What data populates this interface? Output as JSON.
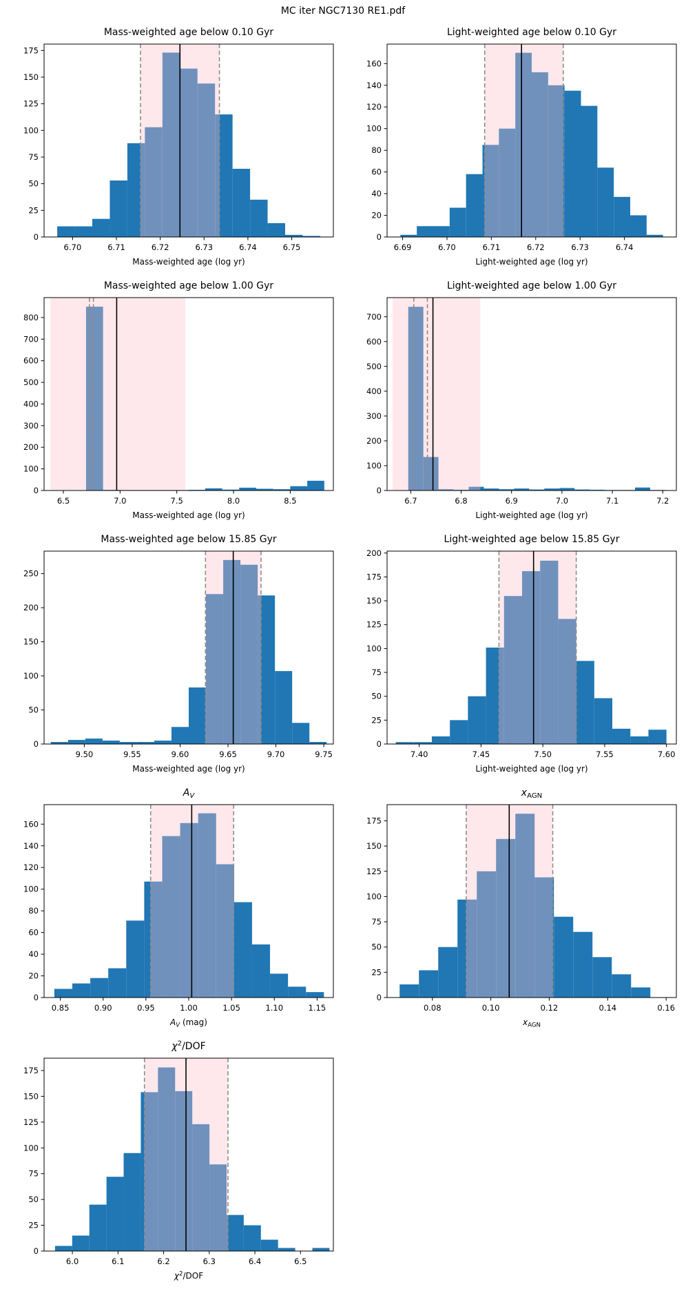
{
  "figure": {
    "title": "MC iter NGC7130 RE1.pdf"
  },
  "colors": {
    "bar": "#2077b4",
    "band": "#ffc0cb",
    "band_opacity": 0.36,
    "dashed": "#8c8c8c",
    "median": "#000000",
    "axis": "#000000"
  },
  "chart_data": [
    {
      "type": "bar",
      "subtype": "histogram",
      "title": "Mass-weighted age below 0.10 Gyr",
      "title_parts": [
        {
          "t": "Mass-weighted age below 0.10 Gyr"
        }
      ],
      "xlabel": "Mass-weighted age (log yr)",
      "xlabel_parts": [
        {
          "t": "Mass-weighted age (log yr)"
        }
      ],
      "xlim": [
        6.6935,
        6.7595
      ],
      "ylim": [
        0,
        181
      ],
      "xtick_vals": [
        6.7,
        6.71,
        6.72,
        6.73,
        6.74,
        6.75
      ],
      "xtick_labels": [
        "6.70",
        "6.71",
        "6.72",
        "6.73",
        "6.74",
        "6.75"
      ],
      "ytick_vals": [
        0,
        25,
        50,
        75,
        100,
        125,
        150,
        175
      ],
      "ytick_labels": [
        "0",
        "25",
        "50",
        "75",
        "100",
        "125",
        "150",
        "175"
      ],
      "bin_start": 6.6965,
      "bin_width": 0.004,
      "counts": [
        10,
        10,
        17,
        53,
        88,
        103,
        173,
        158,
        144,
        115,
        64,
        35,
        13,
        2,
        1
      ],
      "ci_band": [
        6.7155,
        6.7335
      ],
      "median_line": 6.7245,
      "dashed_lines": [
        6.7155,
        6.7335
      ]
    },
    {
      "type": "bar",
      "subtype": "histogram",
      "title": "Light-weighted age below 0.10 Gyr",
      "title_parts": [
        {
          "t": "Light-weighted age below 0.10 Gyr"
        }
      ],
      "xlabel": "Light-weighted age (log yr)",
      "xlabel_parts": [
        {
          "t": "Light-weighted age (log yr)"
        }
      ],
      "xlim": [
        6.6865,
        6.7517
      ],
      "ylim": [
        0,
        178
      ],
      "xtick_vals": [
        6.69,
        6.7,
        6.71,
        6.72,
        6.73,
        6.74
      ],
      "xtick_labels": [
        "6.69",
        "6.70",
        "6.71",
        "6.72",
        "6.73",
        "6.74"
      ],
      "ytick_vals": [
        0,
        20,
        40,
        60,
        80,
        100,
        120,
        140,
        160
      ],
      "ytick_labels": [
        "0",
        "20",
        "40",
        "60",
        "80",
        "100",
        "120",
        "140",
        "160"
      ],
      "bin_start": 6.6895,
      "bin_width": 0.0037,
      "counts": [
        2,
        10,
        10,
        27,
        58,
        85,
        100,
        170,
        152,
        140,
        135,
        121,
        64,
        37,
        20,
        2
      ],
      "ci_band": [
        6.7085,
        6.7262
      ],
      "median_line": 6.7168,
      "dashed_lines": [
        6.7085,
        6.7262
      ]
    },
    {
      "type": "bar",
      "subtype": "histogram",
      "title": "Mass-weighted age below 1.00 Gyr",
      "title_parts": [
        {
          "t": "Mass-weighted age below 1.00 Gyr"
        }
      ],
      "xlabel": "Mass-weighted age (log yr)",
      "xlabel_parts": [
        {
          "t": "Mass-weighted age (log yr)"
        }
      ],
      "xlim": [
        6.33,
        8.88
      ],
      "ylim": [
        0,
        892
      ],
      "xtick_vals": [
        6.5,
        7.0,
        7.5,
        8.0,
        8.5
      ],
      "xtick_labels": [
        "6.5",
        "7.0",
        "7.5",
        "8.0",
        "8.5"
      ],
      "ytick_vals": [
        0,
        100,
        200,
        300,
        400,
        500,
        600,
        700,
        800
      ],
      "ytick_labels": [
        "0",
        "100",
        "200",
        "300",
        "400",
        "500",
        "600",
        "700",
        "800"
      ],
      "bin_start": 6.4,
      "bin_width": 0.15,
      "counts": [
        0,
        0,
        850,
        3,
        2,
        2,
        2,
        2,
        3,
        10,
        4,
        13,
        8,
        6,
        20,
        45
      ],
      "ci_band": [
        6.385,
        7.575
      ],
      "median_line": 6.97,
      "dashed_lines": [
        6.73,
        6.765
      ]
    },
    {
      "type": "bar",
      "subtype": "histogram",
      "title": "Light-weighted age below 1.00 Gyr",
      "title_parts": [
        {
          "t": "Light-weighted age below 1.00 Gyr"
        }
      ],
      "xlabel": "Light-weighted age (log yr)",
      "xlabel_parts": [
        {
          "t": "Light-weighted age (log yr)"
        }
      ],
      "xlim": [
        6.653,
        7.227
      ],
      "ylim": [
        0,
        777
      ],
      "xtick_vals": [
        6.7,
        6.8,
        6.9,
        7.0,
        7.1,
        7.2
      ],
      "xtick_labels": [
        "6.7",
        "6.8",
        "6.9",
        "7.0",
        "7.1",
        "7.2"
      ],
      "ytick_vals": [
        0,
        100,
        200,
        300,
        400,
        500,
        600,
        700
      ],
      "ytick_labels": [
        "0",
        "100",
        "200",
        "300",
        "400",
        "500",
        "600",
        "700"
      ],
      "bin_start": 6.695,
      "bin_width": 0.03,
      "counts": [
        740,
        135,
        5,
        3,
        15,
        8,
        5,
        8,
        4,
        8,
        10,
        4,
        3,
        2,
        2,
        12,
        2
      ],
      "ci_band": [
        6.664,
        6.838
      ],
      "median_line": 6.744,
      "dashed_lines": [
        6.706,
        6.733
      ]
    },
    {
      "type": "bar",
      "subtype": "histogram",
      "title": "Mass-weighted age below 15.85 Gyr",
      "title_parts": [
        {
          "t": "Mass-weighted age below 15.85 Gyr"
        }
      ],
      "xlabel": "Mass-weighted age (log yr)",
      "xlabel_parts": [
        {
          "t": "Mass-weighted age (log yr)"
        }
      ],
      "xlim": [
        9.458,
        9.76
      ],
      "ylim": [
        0,
        283
      ],
      "xtick_vals": [
        9.5,
        9.55,
        9.6,
        9.65,
        9.7,
        9.75
      ],
      "xtick_labels": [
        "9.50",
        "9.55",
        "9.60",
        "9.65",
        "9.70",
        "9.75"
      ],
      "ytick_vals": [
        0,
        50,
        100,
        150,
        200,
        250
      ],
      "ytick_labels": [
        "0",
        "50",
        "100",
        "150",
        "200",
        "250"
      ],
      "bin_start": 9.465,
      "bin_width": 0.018,
      "counts": [
        3,
        6,
        8,
        5,
        3,
        3,
        5,
        25,
        83,
        220,
        270,
        263,
        218,
        107,
        31,
        3
      ],
      "ci_band": [
        9.6265,
        9.6845
      ],
      "median_line": 9.6555,
      "dashed_lines": [
        9.6265,
        9.6845
      ]
    },
    {
      "type": "bar",
      "subtype": "histogram",
      "title": "Light-weighted age below 15.85 Gyr",
      "title_parts": [
        {
          "t": "Light-weighted age below 15.85 Gyr"
        }
      ],
      "xlabel": "Light-weighted age (log yr)",
      "xlabel_parts": [
        {
          "t": "Light-weighted age (log yr)"
        }
      ],
      "xlim": [
        7.374,
        7.608
      ],
      "ylim": [
        0,
        202
      ],
      "xtick_vals": [
        7.4,
        7.45,
        7.5,
        7.55,
        7.6
      ],
      "xtick_labels": [
        "7.40",
        "7.45",
        "7.50",
        "7.55",
        "7.60"
      ],
      "ytick_vals": [
        0,
        25,
        50,
        75,
        100,
        125,
        150,
        175,
        200
      ],
      "ytick_labels": [
        "0",
        "25",
        "50",
        "75",
        "100",
        "125",
        "150",
        "175",
        "200"
      ],
      "bin_start": 7.381,
      "bin_width": 0.0146,
      "counts": [
        2,
        2,
        8,
        25,
        50,
        101,
        155,
        181,
        192,
        131,
        87,
        48,
        16,
        8,
        15
      ],
      "ci_band": [
        7.4645,
        7.527
      ],
      "median_line": 7.4925,
      "dashed_lines": [
        7.4645,
        7.527
      ]
    },
    {
      "type": "bar",
      "subtype": "histogram",
      "title": "A_V",
      "title_parts": [
        {
          "t": "A",
          "i": 1
        },
        {
          "t": "V",
          "i": 1,
          "sub": 1
        }
      ],
      "xlabel": "A_V (mag)",
      "xlabel_parts": [
        {
          "t": "A",
          "i": 1
        },
        {
          "t": "V",
          "i": 1,
          "sub": 1
        },
        {
          "t": " (mag)"
        }
      ],
      "xlim": [
        0.831,
        1.169
      ],
      "ylim": [
        0,
        178
      ],
      "xtick_vals": [
        0.85,
        0.9,
        0.95,
        1.0,
        1.05,
        1.1,
        1.15
      ],
      "xtick_labels": [
        "0.85",
        "0.90",
        "0.95",
        "1.00",
        "1.05",
        "1.10",
        "1.15"
      ],
      "ytick_vals": [
        0,
        20,
        40,
        60,
        80,
        100,
        120,
        140,
        160
      ],
      "ytick_labels": [
        "0",
        "20",
        "40",
        "60",
        "80",
        "100",
        "120",
        "140",
        "160"
      ],
      "bin_start": 0.843,
      "bin_width": 0.021,
      "counts": [
        8,
        13,
        18,
        27,
        71,
        107,
        149,
        161,
        170,
        123,
        88,
        49,
        22,
        10,
        5
      ],
      "ci_band": [
        0.9555,
        1.0525
      ],
      "median_line": 1.0035,
      "dashed_lines": [
        0.9555,
        1.0525
      ]
    },
    {
      "type": "bar",
      "subtype": "histogram",
      "title": "x_AGN",
      "title_parts": [
        {
          "t": "x",
          "i": 1
        },
        {
          "t": "AGN",
          "sub": 1
        }
      ],
      "xlabel": "x_AGN",
      "xlabel_parts": [
        {
          "t": "x",
          "i": 1
        },
        {
          "t": "AGN",
          "sub": 1
        }
      ],
      "xlim": [
        0.0645,
        0.1635
      ],
      "ylim": [
        0,
        191
      ],
      "xtick_vals": [
        0.08,
        0.1,
        0.12,
        0.14,
        0.16
      ],
      "xtick_labels": [
        "0.08",
        "0.10",
        "0.12",
        "0.14",
        "0.16"
      ],
      "ytick_vals": [
        0,
        25,
        50,
        75,
        100,
        125,
        150,
        175
      ],
      "ytick_labels": [
        "0",
        "25",
        "50",
        "75",
        "100",
        "125",
        "150",
        "175"
      ],
      "bin_start": 0.0688,
      "bin_width": 0.0066,
      "counts": [
        13,
        27,
        50,
        97,
        125,
        157,
        182,
        119,
        80,
        65,
        40,
        23,
        10
      ],
      "ci_band": [
        0.0916,
        0.1212
      ],
      "median_line": 0.1063,
      "dashed_lines": [
        0.0916,
        0.1212
      ]
    },
    {
      "type": "bar",
      "subtype": "histogram",
      "title": "χ²/DOF",
      "title_parts": [
        {
          "t": "χ",
          "i": 1
        },
        {
          "t": "2",
          "sup": 1
        },
        {
          "t": "/DOF"
        }
      ],
      "xlabel": "χ²/DOF",
      "xlabel_parts": [
        {
          "t": "χ",
          "i": 1
        },
        {
          "t": "2",
          "sup": 1
        },
        {
          "t": "/DOF"
        }
      ],
      "xlim": [
        5.938,
        6.572
      ],
      "ylim": [
        0,
        187
      ],
      "xtick_vals": [
        6.0,
        6.1,
        6.2,
        6.3,
        6.4,
        6.5
      ],
      "xtick_labels": [
        "6.0",
        "6.1",
        "6.2",
        "6.3",
        "6.4",
        "6.5"
      ],
      "ytick_vals": [
        0,
        25,
        50,
        75,
        100,
        125,
        150,
        175
      ],
      "ytick_labels": [
        "0",
        "25",
        "50",
        "75",
        "100",
        "125",
        "150",
        "175"
      ],
      "bin_start": 5.962,
      "bin_width": 0.0376,
      "counts": [
        5,
        15,
        45,
        72,
        95,
        154,
        178,
        155,
        123,
        84,
        35,
        25,
        11,
        3,
        0,
        3
      ],
      "ci_band": [
        6.158,
        6.341
      ],
      "median_line": 6.249,
      "dashed_lines": [
        6.158,
        6.341
      ]
    }
  ]
}
